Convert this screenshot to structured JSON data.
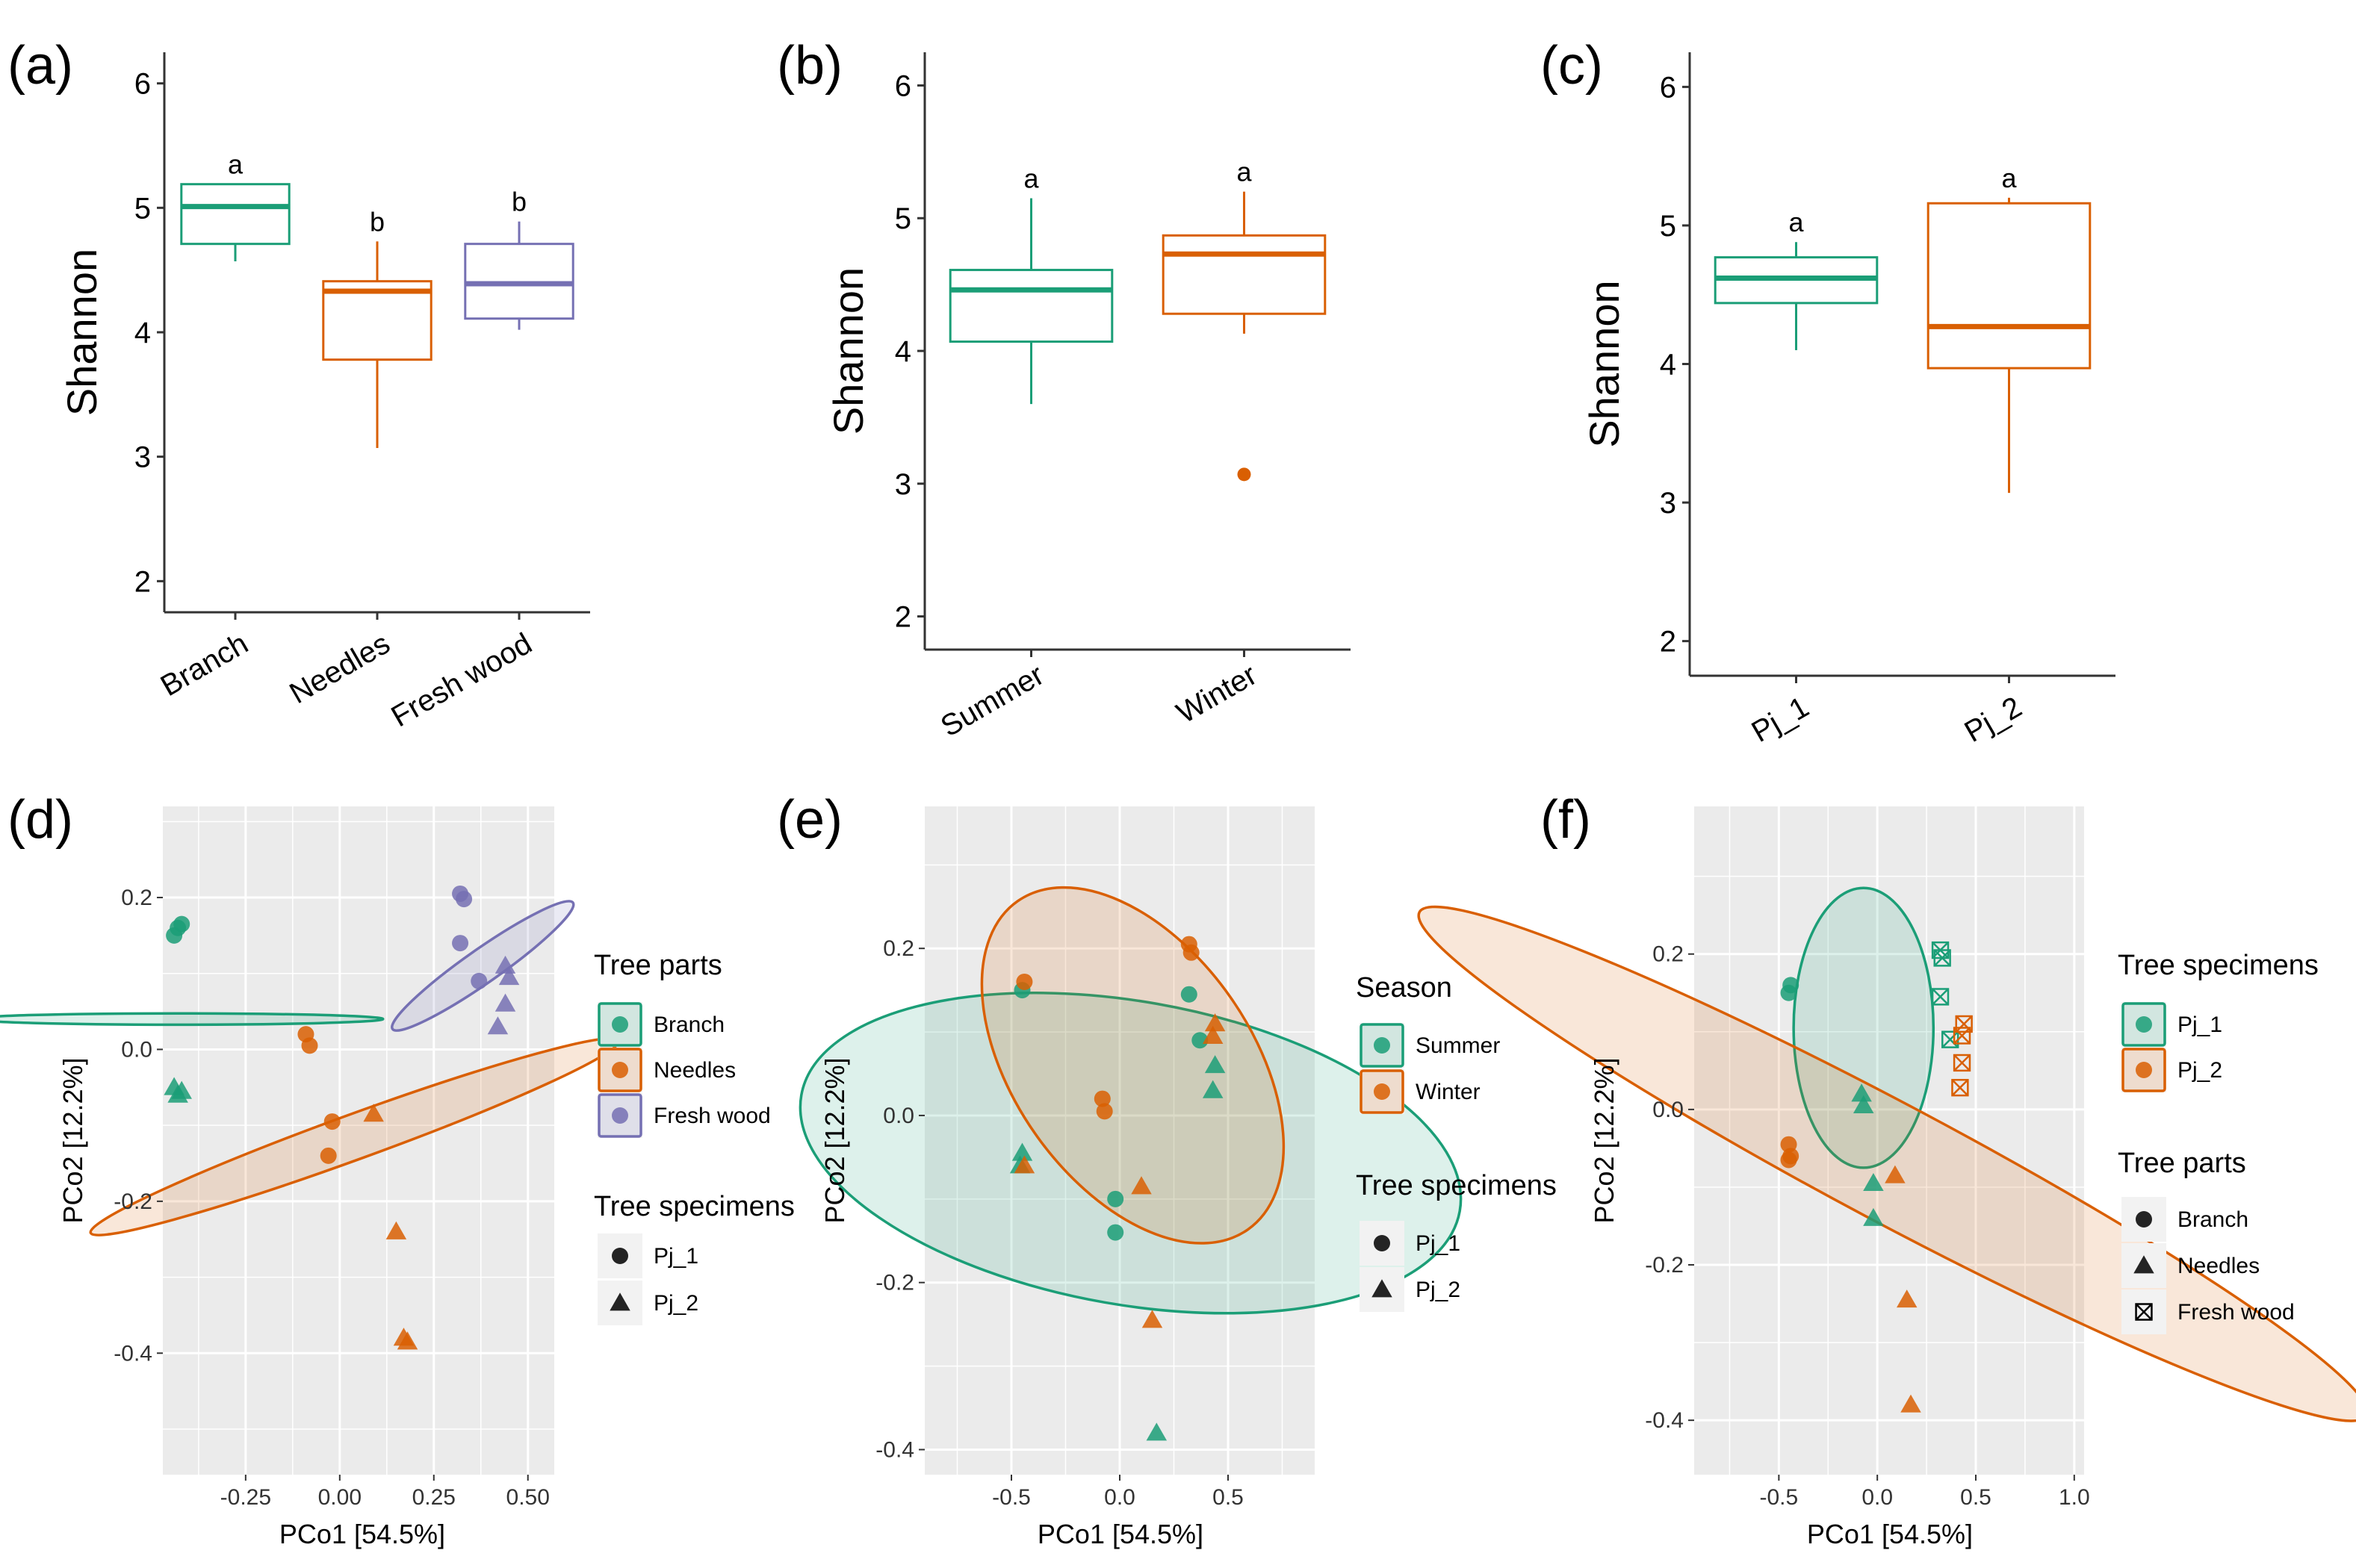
{
  "colors": {
    "green": "#1b9e77",
    "orange": "#d95f02",
    "purple": "#7570b3",
    "grey_panel": "#ebebeb",
    "legend_key": "#f2f2f2"
  },
  "chart_data": [
    {
      "type": "box",
      "panel": "(a)",
      "ylabel": "Shannon",
      "ylim": [
        1.75,
        6.25
      ],
      "yticks": [
        "2",
        "3",
        "4",
        "5",
        "6"
      ],
      "categories": [
        "Branch",
        "Needles",
        "Fresh  wood"
      ],
      "boxes": [
        {
          "category": "Branch",
          "min": 4.57,
          "q1": 4.71,
          "median": 5.01,
          "q3": 5.19,
          "max": 5.19,
          "letter": "a",
          "color": "green"
        },
        {
          "category": "Needles",
          "min": 3.07,
          "q1": 3.78,
          "median": 4.33,
          "q3": 4.41,
          "max": 4.73,
          "letter": "b",
          "color": "orange"
        },
        {
          "category": "Fresh  wood",
          "min": 4.02,
          "q1": 4.11,
          "median": 4.39,
          "q3": 4.71,
          "max": 4.89,
          "letter": "b",
          "color": "purple"
        }
      ]
    },
    {
      "type": "box",
      "panel": "(b)",
      "ylabel": "Shannon",
      "ylim": [
        1.75,
        6.25
      ],
      "yticks": [
        "2",
        "3",
        "4",
        "5",
        "6"
      ],
      "categories": [
        "Summer",
        "Winter"
      ],
      "boxes": [
        {
          "category": "Summer",
          "min": 3.6,
          "q1": 4.07,
          "median": 4.46,
          "q3": 4.61,
          "max": 5.15,
          "letter": "a",
          "color": "green"
        },
        {
          "category": "Winter",
          "min": 4.13,
          "q1": 4.28,
          "median": 4.73,
          "q3": 4.87,
          "max": 5.2,
          "letter": "a",
          "color": "orange",
          "outliers": [
            3.07
          ]
        }
      ]
    },
    {
      "type": "box",
      "panel": "(c)",
      "ylabel": "Shannon",
      "ylim": [
        1.75,
        6.25
      ],
      "yticks": [
        "2",
        "3",
        "4",
        "5",
        "6"
      ],
      "categories": [
        "Pj_1",
        "Pj_2"
      ],
      "boxes": [
        {
          "category": "Pj_1",
          "min": 4.1,
          "q1": 4.44,
          "median": 4.62,
          "q3": 4.77,
          "max": 4.88,
          "letter": "a",
          "color": "green"
        },
        {
          "category": "Pj_2",
          "min": 3.07,
          "q1": 3.97,
          "median": 4.27,
          "q3": 5.16,
          "max": 5.2,
          "letter": "a",
          "color": "orange"
        }
      ]
    },
    {
      "type": "scatter",
      "panel": "(d)",
      "xlabel": "PCo1 [54.5%]",
      "ylabel": "PCo2 [12.2%]",
      "xlim": [
        -0.47,
        0.57
      ],
      "ylim": [
        -0.56,
        0.32
      ],
      "xticks": [
        "-0.25",
        "0.00",
        "0.25",
        "0.50"
      ],
      "yticks": [
        "-0.4",
        "-0.2",
        "0.0",
        "0.2"
      ],
      "legend": [
        {
          "title": "Tree parts",
          "entries": [
            {
              "label": "Branch",
              "color": "green",
              "shape": "circle"
            },
            {
              "label": "Needles",
              "color": "orange",
              "shape": "circle"
            },
            {
              "label": "Fresh  wood",
              "color": "purple",
              "shape": "circle"
            }
          ]
        },
        {
          "title": "Tree specimens",
          "entries": [
            {
              "label": "Pj_1",
              "shape": "circle"
            },
            {
              "label": "Pj_2",
              "shape": "triangle"
            }
          ]
        }
      ],
      "ellipses": [
        {
          "color": "green",
          "cx": -0.43,
          "cy": 0.04,
          "rx": 0.27,
          "ry": 0.015,
          "angle_deg": 90
        },
        {
          "color": "orange",
          "cx": 0.04,
          "cy": -0.115,
          "rx": 0.37,
          "ry": 0.06,
          "angle_deg": -70
        },
        {
          "color": "purple",
          "cx": 0.38,
          "cy": 0.11,
          "rx": 0.145,
          "ry": 0.045,
          "angle_deg": -55
        }
      ],
      "points": [
        {
          "x": -0.44,
          "y": 0.15,
          "color": "green",
          "shape": "circle"
        },
        {
          "x": -0.43,
          "y": 0.16,
          "color": "green",
          "shape": "circle"
        },
        {
          "x": -0.42,
          "y": 0.165,
          "color": "green",
          "shape": "circle"
        },
        {
          "x": -0.44,
          "y": -0.05,
          "color": "green",
          "shape": "triangle"
        },
        {
          "x": -0.43,
          "y": -0.06,
          "color": "green",
          "shape": "triangle"
        },
        {
          "x": -0.42,
          "y": -0.055,
          "color": "green",
          "shape": "triangle"
        },
        {
          "x": -0.09,
          "y": 0.02,
          "color": "orange",
          "shape": "circle"
        },
        {
          "x": -0.08,
          "y": 0.005,
          "color": "orange",
          "shape": "circle"
        },
        {
          "x": -0.02,
          "y": -0.095,
          "color": "orange",
          "shape": "circle"
        },
        {
          "x": -0.03,
          "y": -0.14,
          "color": "orange",
          "shape": "circle"
        },
        {
          "x": 0.09,
          "y": -0.085,
          "color": "orange",
          "shape": "triangle"
        },
        {
          "x": 0.15,
          "y": -0.24,
          "color": "orange",
          "shape": "triangle"
        },
        {
          "x": 0.17,
          "y": -0.38,
          "color": "orange",
          "shape": "triangle"
        },
        {
          "x": 0.18,
          "y": -0.385,
          "color": "orange",
          "shape": "triangle"
        },
        {
          "x": 0.32,
          "y": 0.205,
          "color": "purple",
          "shape": "circle"
        },
        {
          "x": 0.33,
          "y": 0.198,
          "color": "purple",
          "shape": "circle"
        },
        {
          "x": 0.32,
          "y": 0.14,
          "color": "purple",
          "shape": "circle"
        },
        {
          "x": 0.37,
          "y": 0.09,
          "color": "purple",
          "shape": "circle"
        },
        {
          "x": 0.44,
          "y": 0.11,
          "color": "purple",
          "shape": "triangle"
        },
        {
          "x": 0.45,
          "y": 0.095,
          "color": "purple",
          "shape": "triangle"
        },
        {
          "x": 0.44,
          "y": 0.06,
          "color": "purple",
          "shape": "triangle"
        },
        {
          "x": 0.42,
          "y": 0.03,
          "color": "purple",
          "shape": "triangle"
        }
      ]
    },
    {
      "type": "scatter",
      "panel": "(e)",
      "xlabel": "PCo1 [54.5%]",
      "ylabel": "PCo2 [12.2%]",
      "xlim": [
        -0.9,
        0.9
      ],
      "ylim": [
        -0.43,
        0.37
      ],
      "xticks": [
        "-0.5",
        "0.0",
        "0.5"
      ],
      "yticks": [
        "-0.4",
        "-0.2",
        "0.0",
        "0.2"
      ],
      "legend": [
        {
          "title": "Season",
          "entries": [
            {
              "label": "Summer",
              "color": "green",
              "shape": "circle"
            },
            {
              "label": "Winter",
              "color": "orange",
              "shape": "circle"
            }
          ]
        },
        {
          "title": "Tree specimens",
          "entries": [
            {
              "label": "Pj_1",
              "shape": "circle"
            },
            {
              "label": "Pj_2",
              "shape": "triangle"
            }
          ]
        }
      ],
      "ellipses": [
        {
          "color": "green",
          "cx": 0.05,
          "cy": -0.045,
          "rx": 0.4,
          "ry": 0.7,
          "angle_deg": 80
        },
        {
          "color": "orange",
          "cx": 0.06,
          "cy": 0.06,
          "rx": 0.24,
          "ry": 0.55,
          "angle_deg": 35
        }
      ],
      "points": [
        {
          "x": -0.45,
          "y": 0.15,
          "color": "green",
          "shape": "circle"
        },
        {
          "x": -0.45,
          "y": -0.045,
          "color": "green",
          "shape": "triangle"
        },
        {
          "x": -0.46,
          "y": -0.06,
          "color": "green",
          "shape": "triangle"
        },
        {
          "x": -0.02,
          "y": -0.1,
          "color": "green",
          "shape": "circle"
        },
        {
          "x": -0.02,
          "y": -0.14,
          "color": "green",
          "shape": "circle"
        },
        {
          "x": 0.32,
          "y": 0.145,
          "color": "green",
          "shape": "circle"
        },
        {
          "x": 0.37,
          "y": 0.09,
          "color": "green",
          "shape": "circle"
        },
        {
          "x": 0.44,
          "y": 0.06,
          "color": "green",
          "shape": "triangle"
        },
        {
          "x": 0.43,
          "y": 0.03,
          "color": "green",
          "shape": "triangle"
        },
        {
          "x": 0.17,
          "y": -0.38,
          "color": "green",
          "shape": "triangle"
        },
        {
          "x": -0.44,
          "y": 0.16,
          "color": "orange",
          "shape": "circle"
        },
        {
          "x": -0.44,
          "y": -0.06,
          "color": "orange",
          "shape": "triangle"
        },
        {
          "x": -0.08,
          "y": 0.02,
          "color": "orange",
          "shape": "circle"
        },
        {
          "x": -0.07,
          "y": 0.005,
          "color": "orange",
          "shape": "circle"
        },
        {
          "x": 0.1,
          "y": -0.085,
          "color": "orange",
          "shape": "triangle"
        },
        {
          "x": 0.15,
          "y": -0.245,
          "color": "orange",
          "shape": "triangle"
        },
        {
          "x": 0.32,
          "y": 0.205,
          "color": "orange",
          "shape": "circle"
        },
        {
          "x": 0.33,
          "y": 0.195,
          "color": "orange",
          "shape": "circle"
        },
        {
          "x": 0.44,
          "y": 0.11,
          "color": "orange",
          "shape": "triangle"
        },
        {
          "x": 0.43,
          "y": 0.095,
          "color": "orange",
          "shape": "triangle"
        }
      ]
    },
    {
      "type": "scatter",
      "panel": "(f)",
      "xlabel": "PCo1 [54.5%]",
      "ylabel": "PCo2 [12.2%]",
      "xlim": [
        -0.93,
        1.05
      ],
      "ylim": [
        -0.47,
        0.39
      ],
      "xticks": [
        "-0.5",
        "0.0",
        "0.5",
        "1.0"
      ],
      "yticks": [
        "-0.4",
        "-0.2",
        "0.0",
        "0.2"
      ],
      "legend": [
        {
          "title": "Tree specimens",
          "entries": [
            {
              "label": "Pj_1",
              "color": "green",
              "shape": "circle"
            },
            {
              "label": "Pj_2",
              "color": "orange",
              "shape": "circle"
            }
          ]
        },
        {
          "title": "Tree parts",
          "entries": [
            {
              "label": "Branch",
              "shape": "circle"
            },
            {
              "label": "Needles",
              "shape": "triangle"
            },
            {
              "label": "Fresh  wood",
              "shape": "boxx"
            }
          ]
        }
      ],
      "ellipses": [
        {
          "color": "green",
          "cx": -0.07,
          "cy": 0.105,
          "rx": 0.71,
          "ry": 0.18,
          "angle_deg": 0
        },
        {
          "color": "orange",
          "cx": 0.08,
          "cy": -0.07,
          "rx": 0.69,
          "ry": 0.3,
          "angle_deg": 62
        }
      ],
      "points": [
        {
          "x": -0.45,
          "y": 0.15,
          "color": "green",
          "shape": "circle"
        },
        {
          "x": -0.44,
          "y": 0.16,
          "color": "green",
          "shape": "circle"
        },
        {
          "x": -0.45,
          "y": -0.045,
          "color": "orange",
          "shape": "circle"
        },
        {
          "x": -0.44,
          "y": -0.06,
          "color": "orange",
          "shape": "circle"
        },
        {
          "x": -0.45,
          "y": -0.065,
          "color": "orange",
          "shape": "circle"
        },
        {
          "x": -0.08,
          "y": 0.02,
          "color": "green",
          "shape": "triangle"
        },
        {
          "x": -0.07,
          "y": 0.005,
          "color": "green",
          "shape": "triangle"
        },
        {
          "x": -0.02,
          "y": -0.095,
          "color": "green",
          "shape": "triangle"
        },
        {
          "x": -0.02,
          "y": -0.14,
          "color": "green",
          "shape": "triangle"
        },
        {
          "x": 0.09,
          "y": -0.085,
          "color": "orange",
          "shape": "triangle"
        },
        {
          "x": 0.15,
          "y": -0.245,
          "color": "orange",
          "shape": "triangle"
        },
        {
          "x": 0.17,
          "y": -0.38,
          "color": "orange",
          "shape": "triangle"
        },
        {
          "x": 0.32,
          "y": 0.205,
          "color": "green",
          "shape": "boxx"
        },
        {
          "x": 0.33,
          "y": 0.195,
          "color": "green",
          "shape": "boxx"
        },
        {
          "x": 0.32,
          "y": 0.145,
          "color": "green",
          "shape": "boxx"
        },
        {
          "x": 0.37,
          "y": 0.09,
          "color": "green",
          "shape": "boxx"
        },
        {
          "x": 0.44,
          "y": 0.11,
          "color": "orange",
          "shape": "boxx"
        },
        {
          "x": 0.43,
          "y": 0.095,
          "color": "orange",
          "shape": "boxx"
        },
        {
          "x": 0.43,
          "y": 0.06,
          "color": "orange",
          "shape": "boxx"
        },
        {
          "x": 0.42,
          "y": 0.028,
          "color": "orange",
          "shape": "boxx"
        }
      ]
    }
  ]
}
